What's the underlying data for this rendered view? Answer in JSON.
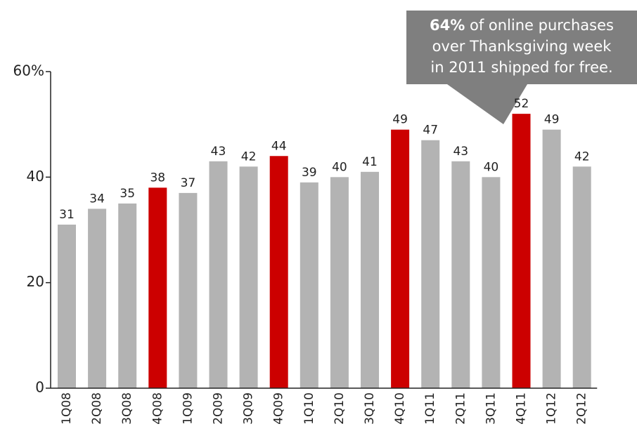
{
  "chart_data": {
    "type": "bar",
    "categories": [
      "1Q08",
      "2Q08",
      "3Q08",
      "4Q08",
      "1Q09",
      "2Q09",
      "3Q09",
      "4Q09",
      "1Q10",
      "2Q10",
      "3Q10",
      "4Q10",
      "1Q11",
      "2Q11",
      "3Q11",
      "4Q11",
      "1Q12",
      "2Q12"
    ],
    "values": [
      31,
      34,
      35,
      38,
      37,
      43,
      42,
      44,
      39,
      40,
      41,
      49,
      47,
      43,
      40,
      52,
      49,
      42
    ],
    "colors": [
      "#b3b3b3",
      "#b3b3b3",
      "#b3b3b3",
      "#cc0000",
      "#b3b3b3",
      "#b3b3b3",
      "#b3b3b3",
      "#cc0000",
      "#b3b3b3",
      "#b3b3b3",
      "#b3b3b3",
      "#cc0000",
      "#b3b3b3",
      "#b3b3b3",
      "#b3b3b3",
      "#cc0000",
      "#b3b3b3",
      "#b3b3b3"
    ],
    "ylim": [
      0,
      60
    ],
    "yticks": [
      0,
      20,
      40,
      {
        "value": 60,
        "label": "60%"
      }
    ],
    "grid": false,
    "annotation": {
      "bold": "64%",
      "lines": [
        "of online purchases",
        "over Thanksgiving week",
        "in 2011 shipped for free."
      ]
    }
  }
}
